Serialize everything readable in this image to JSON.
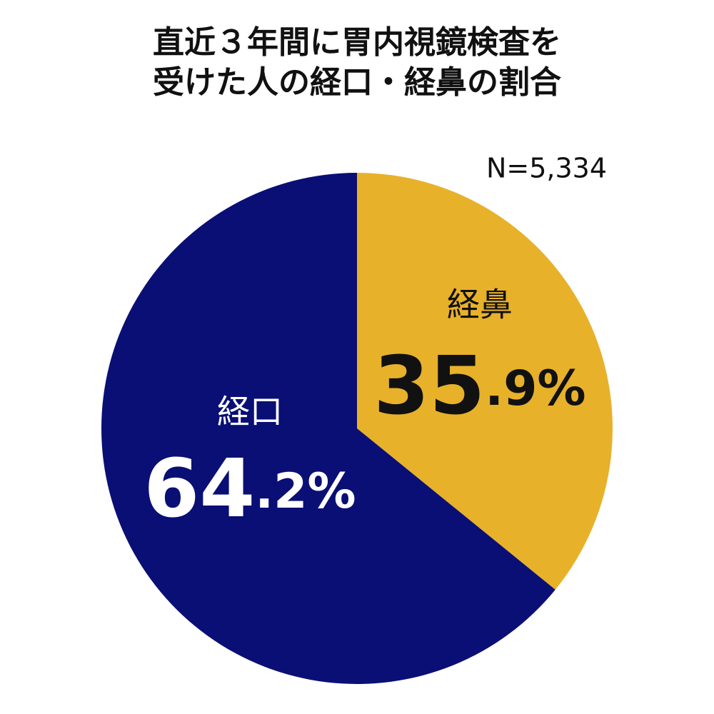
{
  "chart_data": {
    "type": "pie",
    "title": [
      "直近３年間に胃内視鏡検査を",
      "受けた人の経口・経鼻の割合"
    ],
    "note": "N=5,334",
    "categories": [
      "経鼻",
      "経口"
    ],
    "values": [
      35.9,
      64.2
    ],
    "value_labels": [
      "35.9%",
      "64.2%"
    ],
    "colors": [
      "#e8b12a",
      "#0a0f75"
    ]
  }
}
